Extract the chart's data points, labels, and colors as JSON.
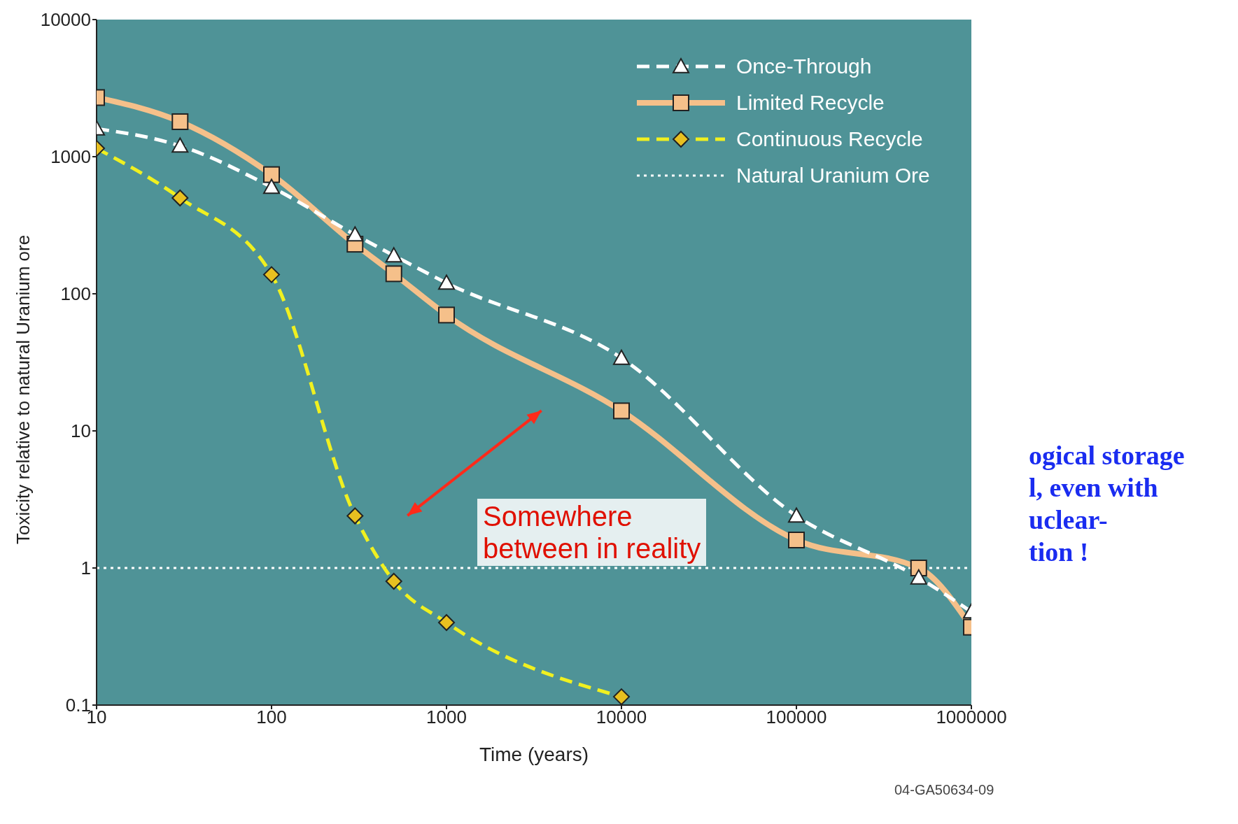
{
  "chart_data": {
    "type": "line",
    "xlabel": "Time (years)",
    "ylabel": "Toxicity relative to natural Uranium ore",
    "log": "xy",
    "xlim": [
      10,
      1000000
    ],
    "xticks": [
      10,
      100,
      1000,
      10000,
      100000,
      1000000
    ],
    "ylim": [
      0.1,
      10000
    ],
    "yticks": [
      0.1,
      1,
      10,
      100,
      1000,
      10000
    ],
    "grid": false,
    "legend": "top right",
    "series": [
      {
        "name": "Once-Through",
        "color": "#ffffff",
        "line_style": "dashed",
        "marker": "triangle",
        "x": [
          10,
          30,
          100,
          300,
          500,
          1000,
          10000,
          100000,
          500000,
          1000000
        ],
        "values": [
          1600,
          1200,
          600,
          270,
          190,
          120,
          34,
          2.4,
          0.85,
          0.48
        ]
      },
      {
        "name": "Limited Recycle",
        "color": "#f5c08a",
        "line_style": "solid",
        "marker": "square",
        "x": [
          10,
          30,
          100,
          300,
          500,
          1000,
          10000,
          100000,
          500000,
          1000000
        ],
        "values": [
          2700,
          1800,
          740,
          230,
          140,
          70,
          14,
          1.6,
          1,
          0.37
        ]
      },
      {
        "name": "Continuous Recycle",
        "color": "#f0f020",
        "line_style": "dashed",
        "marker": "diamond",
        "x": [
          10,
          30,
          100,
          300,
          500,
          1000,
          10000
        ],
        "values": [
          1150,
          500,
          138,
          2.4,
          0.8,
          0.4,
          0.115
        ]
      },
      {
        "name": "Natural Uranium Ore",
        "color": "#ffffff",
        "line_style": "dotted",
        "marker": "none",
        "x": [
          10,
          1000000
        ],
        "values": [
          1,
          1
        ]
      }
    ],
    "annotations": [
      "Somewhere\nbetween in reality",
      "ogical storage\nl, even with\nuclear-\ntion !",
      "04-GA50634-09"
    ]
  }
}
